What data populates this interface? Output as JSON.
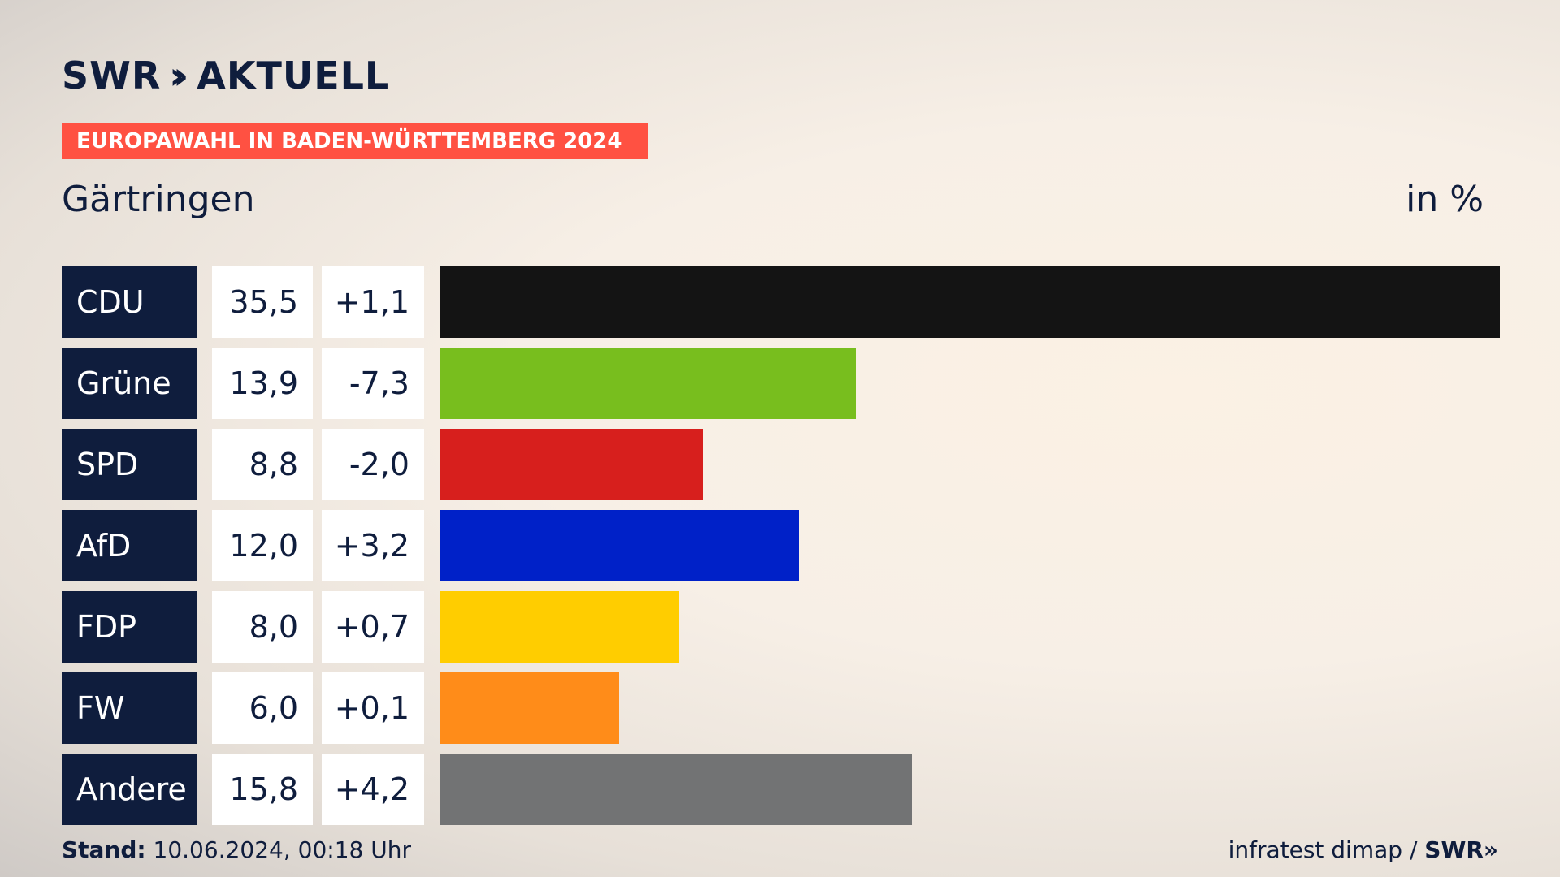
{
  "brand": {
    "name": "SWR",
    "chevrons": "››",
    "section": "AKTUELL"
  },
  "banner": "EUROPAWAHL IN BADEN-WÜRTTEMBERG 2024",
  "place": "Gärtringen",
  "unit": "in %",
  "chart_data": {
    "type": "bar",
    "orientation": "horizontal",
    "categories": [
      "CDU",
      "Grüne",
      "SPD",
      "AfD",
      "FDP",
      "FW",
      "Andere"
    ],
    "values": [
      35.5,
      13.9,
      8.8,
      12.0,
      8.0,
      6.0,
      15.8
    ],
    "value_labels": [
      "35,5",
      "13,9",
      "8,8",
      "12,0",
      "8,0",
      "6,0",
      "15,8"
    ],
    "change_labels": [
      "+1,1",
      "-7,3",
      "-2,0",
      "+3,2",
      "+0,7",
      "+0,1",
      "+4,2"
    ],
    "colors": [
      "#141414",
      "#78be1e",
      "#d71f1d",
      "#0021c8",
      "#ffcd00",
      "#ff8c19",
      "#727374"
    ],
    "xlim": [
      0,
      35.5
    ],
    "grid": false,
    "legend": "none"
  },
  "footer": {
    "stand_label": "Stand:",
    "stand_value": "10.06.2024, 00:18 Uhr",
    "source": "infratest dimap /",
    "source_brand": "SWR»"
  }
}
